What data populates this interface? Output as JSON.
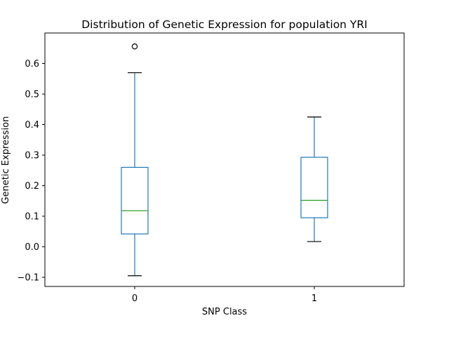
{
  "chart_data": {
    "type": "box",
    "title": "Distribution of Genetic Expression for population YRI",
    "xlabel": "SNP Class",
    "ylabel": "Genetic Expression",
    "categories": [
      "0",
      "1"
    ],
    "ylim": [
      -0.13,
      0.7
    ],
    "yticks": [
      -0.1,
      0.0,
      0.1,
      0.2,
      0.3,
      0.4,
      0.5,
      0.6
    ],
    "ytick_labels": [
      "−0.1",
      "0.0",
      "0.1",
      "0.2",
      "0.3",
      "0.4",
      "0.5",
      "0.6"
    ],
    "grid": false,
    "boxes": [
      {
        "category": "0",
        "whisker_low": -0.095,
        "q1": 0.042,
        "median": 0.118,
        "q3": 0.26,
        "whisker_high": 0.57,
        "outliers": [
          0.656
        ]
      },
      {
        "category": "1",
        "whisker_low": 0.017,
        "q1": 0.095,
        "median": 0.152,
        "q3": 0.293,
        "whisker_high": 0.425,
        "outliers": []
      }
    ],
    "colors": {
      "box": "#1f77b4",
      "median": "#2ca02c",
      "whisker_cap": "#000000",
      "outlier": "#000000"
    }
  }
}
